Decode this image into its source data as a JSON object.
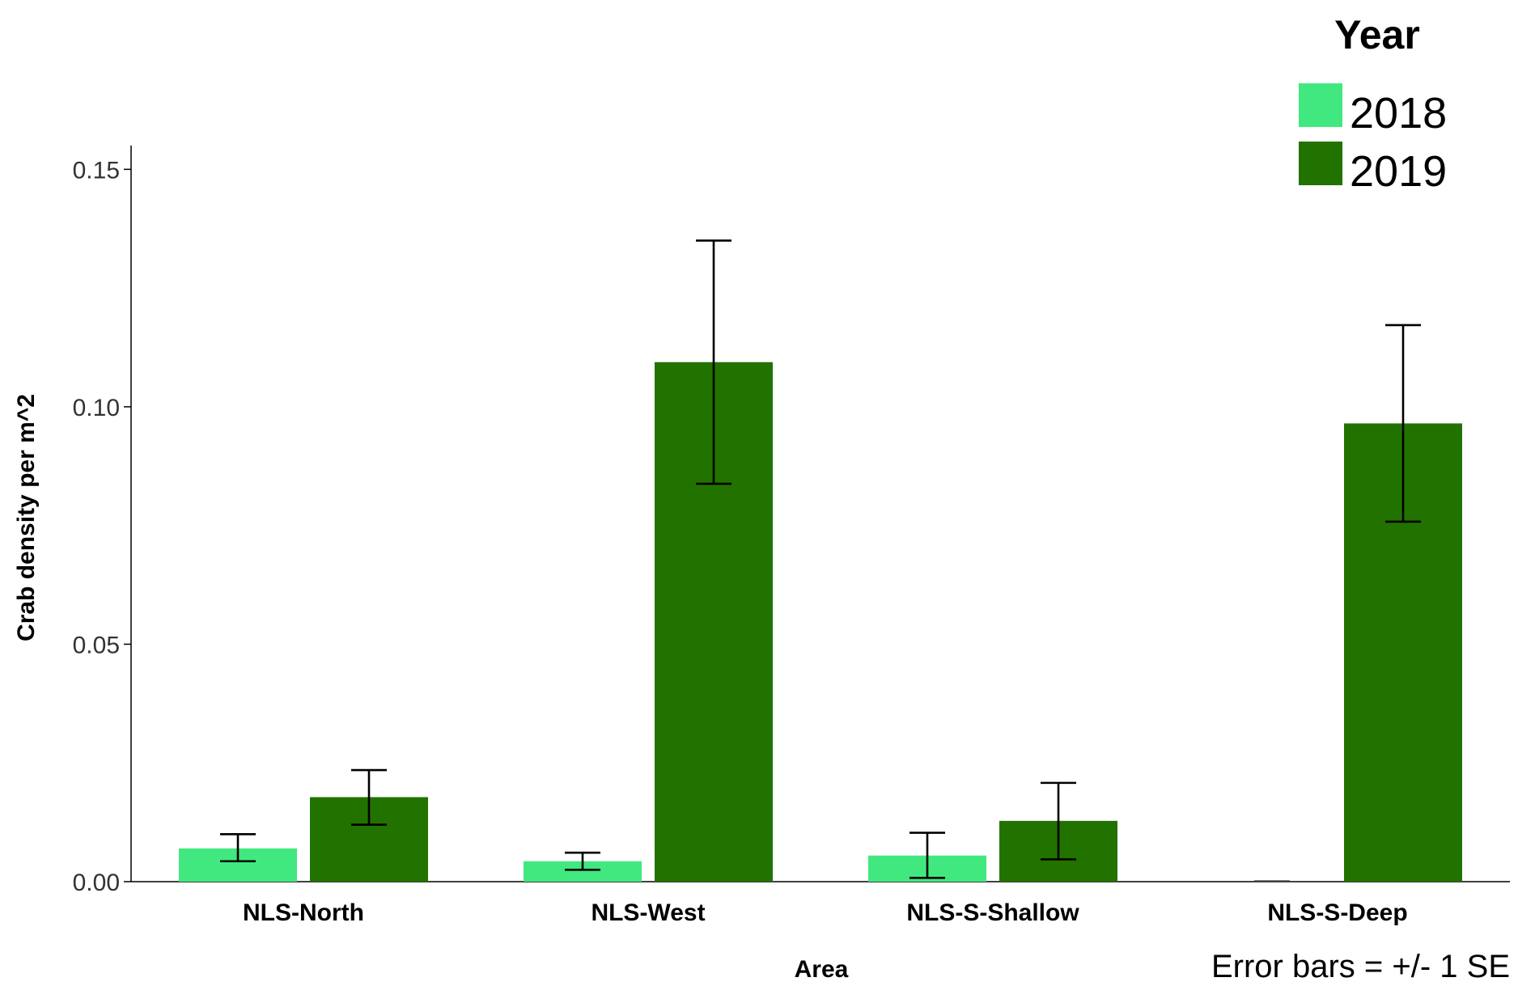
{
  "chart_data": {
    "type": "bar",
    "title": "",
    "xlabel": "Area",
    "ylabel": "Crab density per m^2",
    "categories": [
      "NLS-North",
      "NLS-West",
      "NLS-S-Shallow",
      "NLS-S-Deep"
    ],
    "ylim": [
      0,
      0.155
    ],
    "yticks": [
      0.0,
      0.05,
      0.1,
      0.15
    ],
    "ytick_labels": [
      "0.00",
      "0.05",
      "0.10",
      "0.15"
    ],
    "legend": {
      "title": "Year",
      "position": "top-right"
    },
    "series": [
      {
        "name": "2018",
        "color": "#41e87f",
        "values": [
          0.007,
          0.0043,
          0.0055,
          0.0
        ],
        "error_low": [
          0.0043,
          0.0025,
          0.0008,
          0.0
        ],
        "error_high": [
          0.01,
          0.0061,
          0.0103,
          0.0
        ]
      },
      {
        "name": "2019",
        "color": "#227200",
        "values": [
          0.0178,
          0.1094,
          0.0128,
          0.0965
        ],
        "error_low": [
          0.012,
          0.0838,
          0.0047,
          0.0758
        ],
        "error_high": [
          0.0235,
          0.135,
          0.0208,
          0.1172
        ]
      }
    ],
    "grid": false,
    "note": "Error bars = +/- 1 SE"
  }
}
